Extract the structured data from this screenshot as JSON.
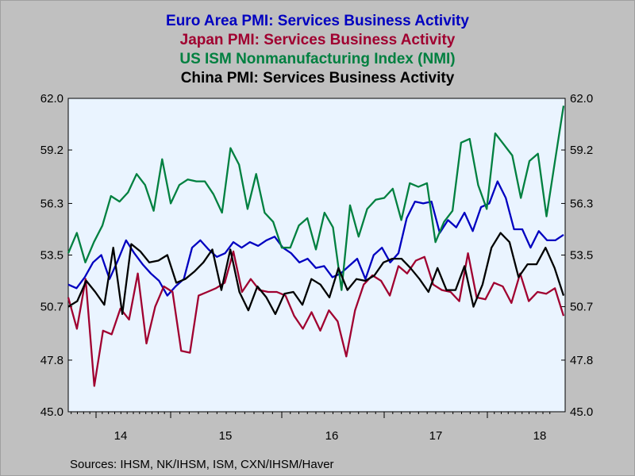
{
  "titles": [
    {
      "text": "Euro Area PMI: Services Business Activity",
      "color": "#0000c0"
    },
    {
      "text": "Japan PMI: Services Business Activity",
      "color": "#a00030"
    },
    {
      "text": "US ISM Nonmanufacturing Index (NMI)",
      "color": "#008040"
    },
    {
      "text": "China PMI: Services Business Activity",
      "color": "#000000"
    }
  ],
  "source": "Sources:  IHSM, NK/IHSM, ISM, CXN/IHSM/Haver",
  "chart_data": {
    "type": "line",
    "ylim": [
      45.0,
      62.0
    ],
    "yticks": [
      "45.0",
      "47.8",
      "50.7",
      "53.5",
      "56.3",
      "59.2",
      "62.0"
    ],
    "xticks": [
      "14",
      "15",
      "16",
      "17",
      "18"
    ],
    "grid": false,
    "start": "2013-09",
    "series": [
      {
        "color": "#0000c0",
        "values": [
          51.9,
          51.7,
          52.3,
          53.1,
          53.5,
          52.2,
          53.2,
          54.3,
          53.6,
          53.0,
          52.5,
          52.1,
          51.3,
          51.8,
          52.2,
          53.9,
          54.3,
          53.8,
          53.4,
          53.6,
          54.2,
          53.9,
          54.2,
          54.0,
          54.3,
          54.5,
          53.9,
          53.6,
          53.1,
          53.3,
          52.8,
          52.9,
          52.3,
          52.5,
          52.9,
          53.3,
          52.2,
          53.5,
          53.9,
          53.1,
          53.6,
          55.5,
          56.4,
          56.3,
          56.4,
          54.7,
          55.4,
          55.0,
          55.8,
          54.8,
          56.1,
          56.3,
          57.5,
          56.6,
          54.9,
          54.9,
          53.9,
          54.8,
          54.3,
          54.3,
          54.6
        ]
      },
      {
        "color": "#a00030",
        "values": [
          51.2,
          49.5,
          52.2,
          46.4,
          49.4,
          49.2,
          50.6,
          50.0,
          52.5,
          48.7,
          50.7,
          51.8,
          51.5,
          48.3,
          48.2,
          51.3,
          51.5,
          51.7,
          52.0,
          53.7,
          51.5,
          52.2,
          51.6,
          51.5,
          51.5,
          51.3,
          50.2,
          49.5,
          50.4,
          49.4,
          50.5,
          49.9,
          48.0,
          50.5,
          51.9,
          52.4,
          52.1,
          51.3,
          52.9,
          52.5,
          53.2,
          53.4,
          51.9,
          51.6,
          51.5,
          51.0,
          53.6,
          51.2,
          51.1,
          52.0,
          51.8,
          50.9,
          52.5,
          51.0,
          51.5,
          51.4,
          51.7,
          50.2
        ]
      },
      {
        "color": "#008040",
        "values": [
          53.6,
          54.7,
          53.1,
          54.2,
          55.1,
          56.7,
          56.4,
          56.9,
          57.9,
          57.3,
          55.9,
          58.7,
          56.3,
          57.3,
          57.6,
          57.5,
          57.5,
          56.8,
          55.8,
          59.3,
          58.4,
          56.0,
          57.9,
          55.8,
          55.3,
          53.9,
          53.9,
          55.1,
          55.5,
          53.8,
          55.8,
          55.0,
          51.6,
          56.2,
          54.5,
          56.0,
          56.5,
          56.6,
          57.1,
          55.4,
          57.4,
          57.2,
          57.4,
          54.2,
          55.3,
          55.9,
          59.6,
          59.8,
          57.3,
          56.0,
          60.1,
          59.5,
          58.9,
          56.6,
          58.6,
          59.0,
          55.6,
          58.6,
          61.6
        ]
      },
      {
        "color": "#000000",
        "values": [
          50.7,
          51.0,
          52.1,
          51.5,
          50.8,
          53.9,
          50.3,
          54.1,
          53.7,
          53.1,
          53.2,
          53.5,
          52.0,
          52.2,
          52.6,
          53.1,
          53.8,
          51.6,
          53.8,
          51.5,
          50.5,
          51.8,
          51.2,
          50.3,
          51.4,
          51.5,
          50.8,
          52.2,
          51.9,
          51.2,
          52.8,
          51.6,
          52.2,
          52.1,
          52.4,
          53.1,
          53.3,
          53.3,
          52.8,
          52.2,
          51.5,
          52.8,
          51.6,
          51.6,
          52.9,
          50.7,
          51.9,
          53.9,
          54.7,
          54.2,
          52.3,
          53.0,
          53.0,
          53.9,
          52.8,
          51.3
        ]
      }
    ]
  }
}
